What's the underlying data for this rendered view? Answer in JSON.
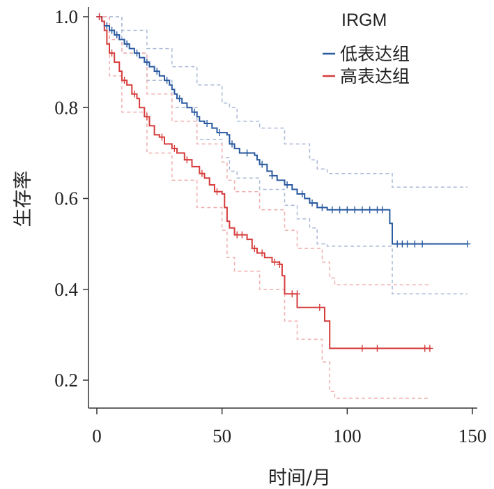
{
  "chart_data": {
    "type": "line",
    "subtype": "kaplan-meier",
    "title": "",
    "xlabel": "时间/月",
    "ylabel": "生存率",
    "xlim": [
      -3,
      150
    ],
    "ylim": [
      0.13,
      1.02
    ],
    "xticks": [
      "0",
      "50",
      "100",
      "150"
    ],
    "xtick_values": [
      0,
      50,
      100,
      150
    ],
    "yticks": [
      "0.2",
      "0.4",
      "0.6",
      "0.8",
      "1.0"
    ],
    "ytick_values": [
      0.2,
      0.4,
      0.6,
      0.8,
      1.0
    ],
    "grid": false,
    "legend": {
      "title": "IRGM",
      "position": "top-right"
    },
    "series": [
      {
        "name": "低表达组",
        "color": "#2a5aa0",
        "ci_color": "#a9b9d6",
        "points": [
          [
            0,
            1.0
          ],
          [
            2,
            0.99
          ],
          [
            3,
            0.98
          ],
          [
            5,
            0.97
          ],
          [
            7,
            0.96
          ],
          [
            9,
            0.95
          ],
          [
            11,
            0.94
          ],
          [
            13,
            0.93
          ],
          [
            15,
            0.92
          ],
          [
            17,
            0.91
          ],
          [
            19,
            0.9
          ],
          [
            21,
            0.89
          ],
          [
            23,
            0.88
          ],
          [
            25,
            0.87
          ],
          [
            27,
            0.86
          ],
          [
            29,
            0.85
          ],
          [
            30,
            0.84
          ],
          [
            31,
            0.83
          ],
          [
            32,
            0.82
          ],
          [
            34,
            0.81
          ],
          [
            36,
            0.8
          ],
          [
            38,
            0.79
          ],
          [
            40,
            0.78
          ],
          [
            41,
            0.77
          ],
          [
            43,
            0.765
          ],
          [
            46,
            0.755
          ],
          [
            48,
            0.745
          ],
          [
            52,
            0.74
          ],
          [
            53,
            0.72
          ],
          [
            55,
            0.71
          ],
          [
            57,
            0.7
          ],
          [
            63,
            0.695
          ],
          [
            64,
            0.685
          ],
          [
            65,
            0.675
          ],
          [
            68,
            0.66
          ],
          [
            70,
            0.65
          ],
          [
            72,
            0.64
          ],
          [
            75,
            0.63
          ],
          [
            78,
            0.62
          ],
          [
            80,
            0.61
          ],
          [
            83,
            0.6
          ],
          [
            85,
            0.59
          ],
          [
            88,
            0.58
          ],
          [
            92,
            0.575
          ],
          [
            116,
            0.575
          ],
          [
            117,
            0.545
          ],
          [
            118,
            0.5
          ],
          [
            148,
            0.5
          ]
        ],
        "censored": [
          [
            1,
            1.0
          ],
          [
            4,
            0.98
          ],
          [
            6,
            0.97
          ],
          [
            8,
            0.96
          ],
          [
            12,
            0.94
          ],
          [
            16,
            0.92
          ],
          [
            20,
            0.9
          ],
          [
            24,
            0.88
          ],
          [
            28,
            0.86
          ],
          [
            33,
            0.82
          ],
          [
            39,
            0.79
          ],
          [
            44,
            0.765
          ],
          [
            49,
            0.745
          ],
          [
            54,
            0.72
          ],
          [
            60,
            0.7
          ],
          [
            66,
            0.675
          ],
          [
            70,
            0.65
          ],
          [
            76,
            0.63
          ],
          [
            82,
            0.61
          ],
          [
            86,
            0.59
          ],
          [
            90,
            0.58
          ],
          [
            94,
            0.575
          ],
          [
            97,
            0.575
          ],
          [
            100,
            0.575
          ],
          [
            103,
            0.575
          ],
          [
            106,
            0.575
          ],
          [
            109,
            0.575
          ],
          [
            112,
            0.575
          ],
          [
            114,
            0.575
          ],
          [
            120,
            0.5
          ],
          [
            122,
            0.5
          ],
          [
            124,
            0.5
          ],
          [
            127,
            0.5
          ],
          [
            130,
            0.5
          ],
          [
            148,
            0.5
          ]
        ],
        "ci_upper": [
          [
            0,
            1.0
          ],
          [
            10,
            0.97
          ],
          [
            20,
            0.93
          ],
          [
            30,
            0.89
          ],
          [
            40,
            0.85
          ],
          [
            50,
            0.81
          ],
          [
            53,
            0.8
          ],
          [
            56,
            0.77
          ],
          [
            65,
            0.755
          ],
          [
            75,
            0.72
          ],
          [
            85,
            0.685
          ],
          [
            88,
            0.665
          ],
          [
            92,
            0.655
          ],
          [
            117,
            0.655
          ],
          [
            118,
            0.625
          ],
          [
            148,
            0.625
          ]
        ],
        "ci_lower": [
          [
            0,
            1.0
          ],
          [
            10,
            0.92
          ],
          [
            20,
            0.86
          ],
          [
            30,
            0.8
          ],
          [
            40,
            0.73
          ],
          [
            50,
            0.69
          ],
          [
            53,
            0.66
          ],
          [
            56,
            0.645
          ],
          [
            65,
            0.62
          ],
          [
            75,
            0.585
          ],
          [
            80,
            0.555
          ],
          [
            85,
            0.535
          ],
          [
            88,
            0.5
          ],
          [
            92,
            0.495
          ],
          [
            117,
            0.495
          ],
          [
            118,
            0.39
          ],
          [
            148,
            0.39
          ]
        ]
      },
      {
        "name": "高表达组",
        "color": "#d63c3c",
        "ci_color": "#f2aeae",
        "points": [
          [
            0,
            1.0
          ],
          [
            2,
            0.99
          ],
          [
            3,
            0.97
          ],
          [
            4,
            0.94
          ],
          [
            5,
            0.92
          ],
          [
            7,
            0.9
          ],
          [
            9,
            0.88
          ],
          [
            10,
            0.86
          ],
          [
            12,
            0.85
          ],
          [
            14,
            0.83
          ],
          [
            16,
            0.82
          ],
          [
            17,
            0.8
          ],
          [
            19,
            0.78
          ],
          [
            21,
            0.76
          ],
          [
            23,
            0.74
          ],
          [
            25,
            0.735
          ],
          [
            27,
            0.72
          ],
          [
            30,
            0.71
          ],
          [
            32,
            0.7
          ],
          [
            35,
            0.685
          ],
          [
            38,
            0.67
          ],
          [
            41,
            0.655
          ],
          [
            43,
            0.645
          ],
          [
            45,
            0.63
          ],
          [
            47,
            0.615
          ],
          [
            50,
            0.61
          ],
          [
            51,
            0.58
          ],
          [
            52,
            0.55
          ],
          [
            53,
            0.535
          ],
          [
            55,
            0.52
          ],
          [
            60,
            0.51
          ],
          [
            62,
            0.49
          ],
          [
            64,
            0.48
          ],
          [
            67,
            0.47
          ],
          [
            70,
            0.46
          ],
          [
            73,
            0.455
          ],
          [
            74,
            0.43
          ],
          [
            75,
            0.39
          ],
          [
            80,
            0.36
          ],
          [
            90,
            0.36
          ],
          [
            91,
            0.33
          ],
          [
            93,
            0.27
          ],
          [
            133,
            0.27
          ]
        ],
        "censored": [
          [
            1,
            1.0
          ],
          [
            6,
            0.92
          ],
          [
            11,
            0.86
          ],
          [
            15,
            0.83
          ],
          [
            20,
            0.78
          ],
          [
            26,
            0.735
          ],
          [
            31,
            0.71
          ],
          [
            36,
            0.685
          ],
          [
            42,
            0.655
          ],
          [
            48,
            0.615
          ],
          [
            56,
            0.52
          ],
          [
            58,
            0.52
          ],
          [
            63,
            0.49
          ],
          [
            66,
            0.48
          ],
          [
            71,
            0.46
          ],
          [
            73,
            0.455
          ],
          [
            78,
            0.39
          ],
          [
            80,
            0.39
          ],
          [
            89,
            0.36
          ],
          [
            106,
            0.27
          ],
          [
            112,
            0.27
          ],
          [
            131,
            0.27
          ],
          [
            133,
            0.27
          ]
        ],
        "ci_upper": [
          [
            0,
            1.0
          ],
          [
            5,
            0.95
          ],
          [
            10,
            0.92
          ],
          [
            20,
            0.83
          ],
          [
            30,
            0.77
          ],
          [
            40,
            0.72
          ],
          [
            50,
            0.68
          ],
          [
            52,
            0.64
          ],
          [
            55,
            0.615
          ],
          [
            65,
            0.575
          ],
          [
            75,
            0.53
          ],
          [
            80,
            0.49
          ],
          [
            90,
            0.46
          ],
          [
            93,
            0.425
          ],
          [
            95,
            0.41
          ],
          [
            133,
            0.41
          ]
        ],
        "ci_lower": [
          [
            0,
            1.0
          ],
          [
            5,
            0.87
          ],
          [
            10,
            0.79
          ],
          [
            20,
            0.7
          ],
          [
            30,
            0.64
          ],
          [
            40,
            0.58
          ],
          [
            50,
            0.53
          ],
          [
            52,
            0.47
          ],
          [
            55,
            0.44
          ],
          [
            65,
            0.4
          ],
          [
            75,
            0.33
          ],
          [
            80,
            0.29
          ],
          [
            90,
            0.24
          ],
          [
            93,
            0.175
          ],
          [
            95,
            0.16
          ],
          [
            133,
            0.16
          ]
        ]
      }
    ]
  }
}
